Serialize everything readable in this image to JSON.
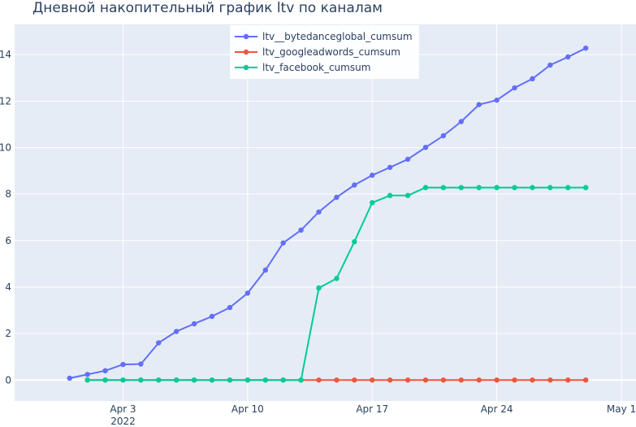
{
  "chart_data": {
    "type": "line",
    "title": "Дневной накопительный график ltv по каналам",
    "xlabel": "",
    "ylabel": "",
    "x_start": "2022-03-31",
    "x_step_days": 1,
    "x_range": [
      "2022-03-28",
      "2022-05-01"
    ],
    "ylim": [
      -0.9,
      15.3
    ],
    "x_ticks": [
      {
        "date": "2022-04-03",
        "label": "Apr 3",
        "sublabel": "2022"
      },
      {
        "date": "2022-04-10",
        "label": "Apr 10"
      },
      {
        "date": "2022-04-17",
        "label": "Apr 17"
      },
      {
        "date": "2022-04-24",
        "label": "Apr 24"
      },
      {
        "date": "2022-05-01",
        "label": "May 1"
      }
    ],
    "y_ticks": [
      0,
      2,
      4,
      6,
      8,
      10,
      12,
      14
    ],
    "grid": true,
    "legend_position": "top-center",
    "series": [
      {
        "name": "ltv__bytedanceglobal_cumsum",
        "color": "#636efa",
        "start_date": "2022-03-31",
        "values": [
          0.08,
          0.24,
          0.4,
          0.67,
          0.69,
          1.6,
          2.09,
          2.42,
          2.74,
          3.12,
          3.74,
          4.73,
          5.9,
          6.45,
          7.23,
          7.86,
          8.39,
          8.81,
          9.15,
          9.5,
          10.01,
          10.51,
          11.12,
          11.85,
          12.04,
          12.57,
          12.96,
          13.55,
          13.9,
          14.28
        ]
      },
      {
        "name": "ltv_googleadwords_cumsum",
        "color": "#ef553b",
        "start_date": "2022-04-01",
        "values": [
          0,
          0,
          0,
          0,
          0,
          0,
          0,
          0,
          0,
          0,
          0,
          0,
          0,
          0,
          0,
          0,
          0,
          0,
          0,
          0,
          0,
          0,
          0,
          0,
          0,
          0,
          0,
          0,
          0
        ]
      },
      {
        "name": "ltv_facebook_cumsum",
        "color": "#00cc96",
        "start_date": "2022-04-01",
        "values": [
          0,
          0,
          0,
          0,
          0,
          0,
          0,
          0,
          0,
          0,
          0,
          0,
          0,
          3.96,
          4.37,
          5.95,
          7.63,
          7.94,
          7.94,
          8.28,
          8.28,
          8.28,
          8.28,
          8.28,
          8.28,
          8.28,
          8.28,
          8.28,
          8.28
        ]
      }
    ]
  }
}
